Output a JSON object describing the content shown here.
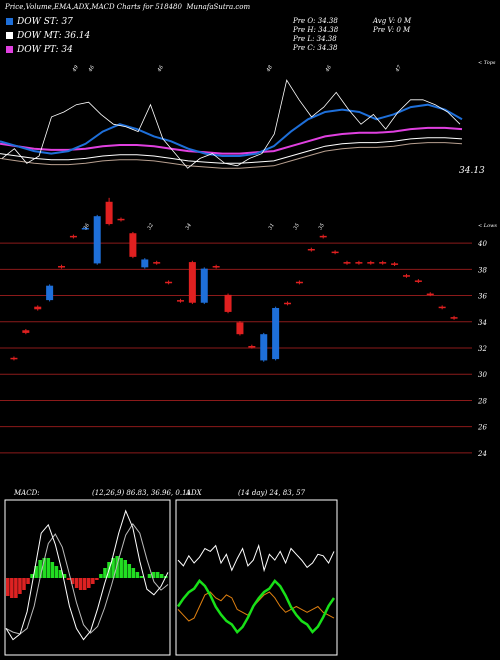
{
  "header": {
    "title": "Price,Volume,EMA,ADX,MACD Charts for 518480",
    "site": "MunafaSutra.com"
  },
  "legend": [
    {
      "label": "DOW ST: 37",
      "color": "#1e6fd9"
    },
    {
      "label": "DOW MT: 36.14",
      "color": "#ffffff"
    },
    {
      "label": "DOW PT: 34",
      "color": "#e040e0"
    }
  ],
  "quote": {
    "o": "Pre O: 34.38",
    "h": "Pre H: 34.38",
    "l": "Pre L: 34.38",
    "c": "Pre C: 34.38",
    "avg_vol": "Avg V: 0 M",
    "pre_vol": "Pre V: 0 M"
  },
  "labels": {
    "tops": "< Tops",
    "lows": "< Lows",
    "last_price": "34.13",
    "macd": "MACD:",
    "macd_values": "(12,26,9) 86.83, 36.96, 0.11",
    "adx": "ADX",
    "adx_values": "(14 day) 24, 83, 57"
  },
  "colors": {
    "background": "#000000",
    "bull": "#1e6fd9",
    "bear": "#e02020",
    "ema_pink": "#e040e0",
    "macd_bull": "#22dd22",
    "macd_bear": "#dd2222",
    "adx_green": "#18e018",
    "adx_orange": "#e08010"
  },
  "chart_data": [
    {
      "type": "line",
      "name": "price-ema-panel",
      "tops_labels": [
        "49",
        "46",
        "46",
        "48",
        "46",
        "47",
        "41"
      ],
      "low_labels": [
        "36",
        "32",
        "34",
        "31",
        "35",
        "35"
      ],
      "last_value": 34.13,
      "ema_short": [
        35.9,
        35.7,
        35.5,
        35.4,
        35.5,
        35.8,
        36.3,
        36.6,
        36.4,
        36.1,
        35.9,
        35.6,
        35.4,
        35.3,
        35.3,
        35.4,
        35.7,
        36.3,
        36.8,
        37.1,
        37.2,
        37.1,
        36.8,
        37.0,
        37.3,
        37.4,
        37.2,
        36.8
      ],
      "ema_long": [
        35.8,
        35.7,
        35.6,
        35.55,
        35.55,
        35.6,
        35.7,
        35.75,
        35.75,
        35.7,
        35.6,
        35.5,
        35.45,
        35.4,
        35.4,
        35.45,
        35.5,
        35.7,
        35.9,
        36.1,
        36.2,
        36.25,
        36.25,
        36.3,
        36.4,
        36.45,
        36.45,
        36.4
      ],
      "y_axis_ticks": [
        "40",
        "38",
        "36",
        "34",
        "32",
        "30",
        "28",
        "26",
        "24"
      ],
      "ylim": [
        23,
        41
      ],
      "candles": [
        {
          "o": 31.1,
          "c": 31.0,
          "h": 31.2,
          "l": 30.9
        },
        {
          "o": 33.2,
          "c": 33.0,
          "h": 33.3,
          "l": 32.9
        },
        {
          "o": 35.0,
          "c": 34.8,
          "h": 35.1,
          "l": 34.7
        },
        {
          "o": 35.5,
          "c": 36.6,
          "h": 36.7,
          "l": 35.4
        },
        {
          "o": 38.1,
          "c": 38.0,
          "h": 38.2,
          "l": 37.9
        },
        {
          "o": 40.4,
          "c": 40.3,
          "h": 40.5,
          "l": 40.2
        },
        {
          "o": 41.0,
          "c": 41.0,
          "h": 41.1,
          "l": 40.9
        },
        {
          "o": 38.3,
          "c": 41.9,
          "h": 42.0,
          "l": 38.2
        },
        {
          "o": 43.0,
          "c": 41.3,
          "h": 43.3,
          "l": 41.2
        },
        {
          "o": 41.7,
          "c": 41.6,
          "h": 41.8,
          "l": 41.5
        },
        {
          "o": 40.6,
          "c": 38.8,
          "h": 40.7,
          "l": 38.7
        },
        {
          "o": 38.0,
          "c": 38.6,
          "h": 38.7,
          "l": 37.9
        },
        {
          "o": 38.4,
          "c": 38.3,
          "h": 38.5,
          "l": 38.2
        },
        {
          "o": 36.9,
          "c": 36.8,
          "h": 37.0,
          "l": 36.7
        },
        {
          "o": 35.5,
          "c": 35.4,
          "h": 35.6,
          "l": 35.3
        },
        {
          "o": 38.4,
          "c": 35.3,
          "h": 38.5,
          "l": 35.2
        },
        {
          "o": 35.3,
          "c": 37.9,
          "h": 38.0,
          "l": 35.2
        },
        {
          "o": 38.1,
          "c": 38.0,
          "h": 38.2,
          "l": 37.9
        },
        {
          "o": 35.9,
          "c": 34.6,
          "h": 36.0,
          "l": 34.5
        },
        {
          "o": 33.8,
          "c": 32.9,
          "h": 33.9,
          "l": 32.8
        },
        {
          "o": 32.0,
          "c": 31.9,
          "h": 32.1,
          "l": 31.8
        },
        {
          "o": 30.9,
          "c": 32.9,
          "h": 33.0,
          "l": 30.8
        },
        {
          "o": 31.0,
          "c": 34.9,
          "h": 35.0,
          "l": 30.9
        },
        {
          "o": 35.3,
          "c": 35.2,
          "h": 35.4,
          "l": 35.1
        },
        {
          "o": 36.9,
          "c": 36.8,
          "h": 37.0,
          "l": 36.7
        },
        {
          "o": 39.4,
          "c": 39.3,
          "h": 39.5,
          "l": 39.2
        },
        {
          "o": 40.4,
          "c": 40.3,
          "h": 40.5,
          "l": 40.2
        },
        {
          "o": 39.2,
          "c": 39.1,
          "h": 39.3,
          "l": 39.0
        },
        {
          "o": 38.4,
          "c": 38.3,
          "h": 38.5,
          "l": 38.2
        },
        {
          "o": 38.4,
          "c": 38.3,
          "h": 38.5,
          "l": 38.2
        },
        {
          "o": 38.4,
          "c": 38.3,
          "h": 38.5,
          "l": 38.2
        },
        {
          "o": 38.4,
          "c": 38.3,
          "h": 38.5,
          "l": 38.2
        },
        {
          "o": 38.3,
          "c": 38.2,
          "h": 38.4,
          "l": 38.1
        },
        {
          "o": 37.4,
          "c": 37.3,
          "h": 37.5,
          "l": 37.2
        },
        {
          "o": 37.0,
          "c": 36.9,
          "h": 37.1,
          "l": 36.8
        },
        {
          "o": 36.0,
          "c": 35.9,
          "h": 36.1,
          "l": 35.8
        },
        {
          "o": 35.0,
          "c": 34.9,
          "h": 35.1,
          "l": 34.8
        },
        {
          "o": 34.2,
          "c": 34.1,
          "h": 34.3,
          "l": 34.0
        }
      ]
    },
    {
      "type": "bar",
      "name": "macd-histogram",
      "values": [
        -0.9,
        -1.0,
        -1.0,
        -0.8,
        -0.6,
        -0.3,
        0.2,
        0.6,
        0.9,
        1.0,
        1.0,
        0.8,
        0.6,
        0.4,
        0.2,
        -0.1,
        -0.3,
        -0.5,
        -0.6,
        -0.6,
        -0.5,
        -0.3,
        -0.1,
        0.2,
        0.5,
        0.8,
        1.0,
        1.1,
        1.0,
        0.9,
        0.7,
        0.5,
        0.3,
        0.1,
        0.0,
        0.2,
        0.3,
        0.3,
        0.2,
        0.1
      ],
      "ylim": [
        -2,
        2
      ]
    },
    {
      "type": "line",
      "name": "adx-panel",
      "series": [
        {
          "values": [
            62,
            58,
            65,
            60,
            64,
            70,
            68,
            72,
            60,
            66,
            55,
            63,
            70,
            58,
            62,
            72,
            55,
            66,
            62,
            68,
            60,
            70,
            66,
            62,
            57,
            60,
            66,
            65,
            60,
            68
          ]
        },
        {
          "values": [
            28,
            24,
            20,
            22,
            30,
            38,
            40,
            36,
            34,
            38,
            36,
            28,
            26,
            24,
            30,
            34,
            38,
            40,
            36,
            30,
            26,
            28,
            30,
            28,
            26,
            28,
            30,
            26,
            24,
            22
          ]
        },
        {
          "values": [
            24,
            22,
            10,
            14,
            8,
            16,
            30,
            36,
            20,
            30,
            26,
            10,
            8,
            14,
            22,
            24,
            30,
            28,
            26,
            22,
            14,
            18,
            22,
            24,
            26,
            18,
            20,
            24,
            28,
            20
          ]
        }
      ],
      "ylim": [
        0,
        100
      ]
    }
  ]
}
